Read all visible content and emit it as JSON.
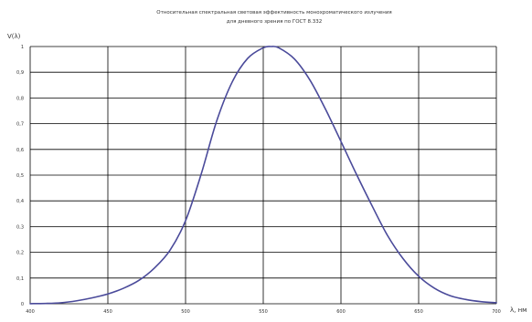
{
  "chart_data": {
    "type": "line",
    "title": "Относительная спектральная световая эффективность монохроматического излучения",
    "subtitle": "для дневного зрения по ГОСТ 8.332",
    "xlabel": "λ, нм",
    "ylabel": "V(λ)",
    "xlim": [
      400,
      700
    ],
    "ylim": [
      0,
      1
    ],
    "x_ticks": [
      400,
      450,
      500,
      550,
      600,
      650,
      700
    ],
    "y_ticks": [
      0,
      0.1,
      0.2,
      0.3,
      0.4,
      0.5,
      0.6,
      0.7,
      0.8,
      0.9,
      1
    ],
    "x_tick_labels": [
      "400",
      "450",
      "500",
      "550",
      "600",
      "650",
      "700"
    ],
    "y_tick_labels": [
      "0",
      "0,1",
      "0,2",
      "0,3",
      "0,4",
      "0,5",
      "0,6",
      "0,7",
      "0,8",
      "0,9",
      "1"
    ],
    "grid": true,
    "line_color": "#4a4a9a",
    "grid_color": "#000000",
    "series": [
      {
        "x": [
          400,
          410,
          420,
          430,
          440,
          450,
          460,
          470,
          480,
          490,
          500,
          510,
          520,
          530,
          540,
          550,
          555,
          560,
          570,
          580,
          590,
          600,
          610,
          620,
          630,
          640,
          650,
          660,
          670,
          680,
          690,
          700
        ],
        "values": [
          0.0004,
          0.0012,
          0.004,
          0.0116,
          0.023,
          0.038,
          0.06,
          0.091,
          0.139,
          0.208,
          0.323,
          0.503,
          0.71,
          0.862,
          0.954,
          0.995,
          1.0,
          0.995,
          0.952,
          0.87,
          0.757,
          0.631,
          0.503,
          0.381,
          0.265,
          0.175,
          0.107,
          0.061,
          0.032,
          0.017,
          0.0082,
          0.0041
        ]
      }
    ]
  }
}
